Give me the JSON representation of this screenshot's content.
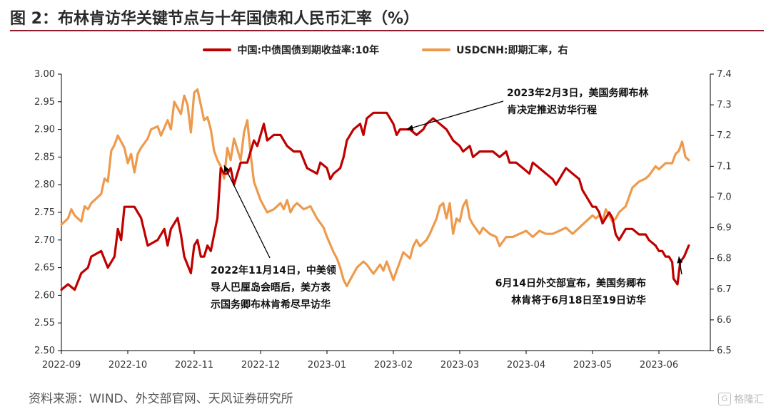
{
  "title": "图 2：布林肯访华关键节点与十年国债和人民币汇率（%）",
  "source": "资料来源：WIND、外交部官网、天风证券研究所",
  "logo_text": "格隆汇",
  "colors": {
    "bond": "#c00000",
    "fx": "#ee9a4d",
    "title_rule": "#8c1c2e"
  },
  "chart_data": {
    "type": "line",
    "x_ticks": [
      "2022-09",
      "2022-10",
      "2022-11",
      "2022-12",
      "2023-01",
      "2023-02",
      "2023-03",
      "2023-04",
      "2023-05",
      "2023-06"
    ],
    "x_range": [
      0,
      9.45
    ],
    "y_left": {
      "ticks": [
        "2.50",
        "2.55",
        "2.60",
        "2.65",
        "2.70",
        "2.75",
        "2.80",
        "2.85",
        "2.90",
        "2.95",
        "3.00"
      ],
      "range": [
        2.5,
        3.0
      ]
    },
    "y_right": {
      "ticks": [
        "6.5",
        "6.6",
        "6.7",
        "6.8",
        "6.9",
        "7.0",
        "7.1",
        "7.2",
        "7.3",
        "7.4"
      ],
      "range": [
        6.5,
        7.4
      ]
    },
    "series": [
      {
        "name": "中国:中债国债到期收益率:10年",
        "axis": "left",
        "points": [
          [
            0.0,
            2.61
          ],
          [
            0.1,
            2.62
          ],
          [
            0.2,
            2.61
          ],
          [
            0.3,
            2.64
          ],
          [
            0.4,
            2.65
          ],
          [
            0.45,
            2.67
          ],
          [
            0.6,
            2.68
          ],
          [
            0.7,
            2.65
          ],
          [
            0.8,
            2.67
          ],
          [
            0.85,
            2.72
          ],
          [
            0.9,
            2.7
          ],
          [
            0.95,
            2.76
          ],
          [
            1.0,
            2.76
          ],
          [
            1.1,
            2.76
          ],
          [
            1.15,
            2.75
          ],
          [
            1.2,
            2.74
          ],
          [
            1.3,
            2.69
          ],
          [
            1.45,
            2.7
          ],
          [
            1.55,
            2.72
          ],
          [
            1.6,
            2.69
          ],
          [
            1.65,
            2.72
          ],
          [
            1.75,
            2.74
          ],
          [
            1.8,
            2.71
          ],
          [
            1.85,
            2.67
          ],
          [
            1.95,
            2.64
          ],
          [
            2.0,
            2.69
          ],
          [
            2.05,
            2.7
          ],
          [
            2.1,
            2.67
          ],
          [
            2.15,
            2.67
          ],
          [
            2.2,
            2.69
          ],
          [
            2.25,
            2.68
          ],
          [
            2.3,
            2.71
          ],
          [
            2.35,
            2.74
          ],
          [
            2.4,
            2.83
          ],
          [
            2.45,
            2.82
          ],
          [
            2.5,
            2.82
          ],
          [
            2.55,
            2.83
          ],
          [
            2.6,
            2.8
          ],
          [
            2.7,
            2.84
          ],
          [
            2.8,
            2.84
          ],
          [
            2.9,
            2.88
          ],
          [
            2.95,
            2.87
          ],
          [
            3.05,
            2.91
          ],
          [
            3.1,
            2.88
          ],
          [
            3.2,
            2.89
          ],
          [
            3.3,
            2.89
          ],
          [
            3.4,
            2.87
          ],
          [
            3.5,
            2.86
          ],
          [
            3.6,
            2.86
          ],
          [
            3.7,
            2.83
          ],
          [
            3.85,
            2.82
          ],
          [
            3.9,
            2.84
          ],
          [
            4.0,
            2.83
          ],
          [
            4.05,
            2.81
          ],
          [
            4.1,
            2.82
          ],
          [
            4.2,
            2.83
          ],
          [
            4.25,
            2.85
          ],
          [
            4.3,
            2.88
          ],
          [
            4.4,
            2.9
          ],
          [
            4.5,
            2.91
          ],
          [
            4.55,
            2.89
          ],
          [
            4.6,
            2.92
          ],
          [
            4.7,
            2.93
          ],
          [
            4.8,
            2.93
          ],
          [
            4.9,
            2.93
          ],
          [
            5.0,
            2.91
          ],
          [
            5.05,
            2.89
          ],
          [
            5.1,
            2.9
          ],
          [
            5.15,
            2.9
          ],
          [
            5.25,
            2.9
          ],
          [
            5.35,
            2.89
          ],
          [
            5.45,
            2.9
          ],
          [
            5.5,
            2.91
          ],
          [
            5.6,
            2.92
          ],
          [
            5.7,
            2.91
          ],
          [
            5.8,
            2.9
          ],
          [
            5.9,
            2.88
          ],
          [
            6.0,
            2.87
          ],
          [
            6.05,
            2.86
          ],
          [
            6.15,
            2.87
          ],
          [
            6.2,
            2.85
          ],
          [
            6.3,
            2.86
          ],
          [
            6.4,
            2.86
          ],
          [
            6.5,
            2.86
          ],
          [
            6.6,
            2.85
          ],
          [
            6.7,
            2.86
          ],
          [
            6.75,
            2.84
          ],
          [
            6.85,
            2.84
          ],
          [
            6.95,
            2.83
          ],
          [
            7.05,
            2.82
          ],
          [
            7.1,
            2.84
          ],
          [
            7.2,
            2.83
          ],
          [
            7.3,
            2.82
          ],
          [
            7.4,
            2.81
          ],
          [
            7.45,
            2.8
          ],
          [
            7.55,
            2.82
          ],
          [
            7.6,
            2.83
          ],
          [
            7.7,
            2.82
          ],
          [
            7.8,
            2.81
          ],
          [
            7.85,
            2.79
          ],
          [
            7.9,
            2.78
          ],
          [
            8.0,
            2.76
          ],
          [
            8.05,
            2.76
          ],
          [
            8.1,
            2.75
          ],
          [
            8.15,
            2.73
          ],
          [
            8.2,
            2.74
          ],
          [
            8.25,
            2.75
          ],
          [
            8.3,
            2.74
          ],
          [
            8.35,
            2.71
          ],
          [
            8.4,
            2.7
          ],
          [
            8.5,
            2.72
          ],
          [
            8.6,
            2.72
          ],
          [
            8.7,
            2.71
          ],
          [
            8.8,
            2.71
          ],
          [
            8.85,
            2.7
          ],
          [
            8.95,
            2.69
          ],
          [
            9.0,
            2.68
          ],
          [
            9.05,
            2.68
          ],
          [
            9.1,
            2.67
          ],
          [
            9.15,
            2.67
          ],
          [
            9.2,
            2.66
          ],
          [
            9.22,
            2.63
          ],
          [
            9.28,
            2.62
          ],
          [
            9.32,
            2.66
          ],
          [
            9.38,
            2.67
          ],
          [
            9.45,
            2.69
          ]
        ]
      },
      {
        "name": "USDCNH:即期汇率，右",
        "axis": "right",
        "points": [
          [
            0.0,
            6.91
          ],
          [
            0.1,
            6.93
          ],
          [
            0.15,
            6.96
          ],
          [
            0.2,
            6.94
          ],
          [
            0.3,
            6.92
          ],
          [
            0.35,
            6.97
          ],
          [
            0.4,
            6.96
          ],
          [
            0.45,
            6.98
          ],
          [
            0.55,
            7.0
          ],
          [
            0.6,
            7.01
          ],
          [
            0.65,
            7.06
          ],
          [
            0.7,
            7.05
          ],
          [
            0.75,
            7.15
          ],
          [
            0.8,
            7.17
          ],
          [
            0.85,
            7.2
          ],
          [
            0.9,
            7.18
          ],
          [
            0.95,
            7.16
          ],
          [
            1.0,
            7.11
          ],
          [
            1.05,
            7.14
          ],
          [
            1.1,
            7.08
          ],
          [
            1.15,
            7.14
          ],
          [
            1.2,
            7.16
          ],
          [
            1.3,
            7.19
          ],
          [
            1.35,
            7.22
          ],
          [
            1.45,
            7.23
          ],
          [
            1.5,
            7.2
          ],
          [
            1.6,
            7.25
          ],
          [
            1.65,
            7.22
          ],
          [
            1.7,
            7.31
          ],
          [
            1.8,
            7.27
          ],
          [
            1.85,
            7.33
          ],
          [
            1.9,
            7.3
          ],
          [
            1.95,
            7.21
          ],
          [
            2.0,
            7.34
          ],
          [
            2.05,
            7.35
          ],
          [
            2.1,
            7.3
          ],
          [
            2.15,
            7.25
          ],
          [
            2.2,
            7.26
          ],
          [
            2.25,
            7.22
          ],
          [
            2.3,
            7.15
          ],
          [
            2.35,
            7.12
          ],
          [
            2.4,
            7.1
          ],
          [
            2.45,
            7.06
          ],
          [
            2.5,
            7.16
          ],
          [
            2.55,
            7.12
          ],
          [
            2.6,
            7.19
          ],
          [
            2.7,
            7.12
          ],
          [
            2.75,
            7.21
          ],
          [
            2.8,
            7.25
          ],
          [
            2.85,
            7.14
          ],
          [
            2.9,
            7.05
          ],
          [
            3.0,
            6.99
          ],
          [
            3.05,
            6.97
          ],
          [
            3.1,
            6.95
          ],
          [
            3.2,
            6.96
          ],
          [
            3.3,
            6.98
          ],
          [
            3.35,
            6.96
          ],
          [
            3.4,
            6.99
          ],
          [
            3.45,
            6.95
          ],
          [
            3.5,
            6.97
          ],
          [
            3.55,
            6.98
          ],
          [
            3.65,
            6.96
          ],
          [
            3.75,
            6.97
          ],
          [
            3.85,
            6.93
          ],
          [
            3.95,
            6.9
          ],
          [
            4.0,
            6.87
          ],
          [
            4.1,
            6.82
          ],
          [
            4.15,
            6.8
          ],
          [
            4.2,
            6.77
          ],
          [
            4.25,
            6.73
          ],
          [
            4.3,
            6.71
          ],
          [
            4.35,
            6.73
          ],
          [
            4.45,
            6.77
          ],
          [
            4.55,
            6.79
          ],
          [
            4.6,
            6.78
          ],
          [
            4.7,
            6.75
          ],
          [
            4.8,
            6.78
          ],
          [
            4.85,
            6.76
          ],
          [
            4.9,
            6.79
          ],
          [
            5.0,
            6.73
          ],
          [
            5.05,
            6.76
          ],
          [
            5.1,
            6.79
          ],
          [
            5.15,
            6.82
          ],
          [
            5.25,
            6.8
          ],
          [
            5.3,
            6.84
          ],
          [
            5.35,
            6.86
          ],
          [
            5.4,
            6.84
          ],
          [
            5.5,
            6.86
          ],
          [
            5.55,
            6.88
          ],
          [
            5.65,
            6.93
          ],
          [
            5.7,
            6.97
          ],
          [
            5.75,
            6.98
          ],
          [
            5.8,
            6.93
          ],
          [
            5.85,
            6.98
          ],
          [
            5.9,
            6.88
          ],
          [
            5.95,
            6.93
          ],
          [
            6.0,
            6.92
          ],
          [
            6.05,
            6.97
          ],
          [
            6.1,
            6.99
          ],
          [
            6.15,
            6.93
          ],
          [
            6.2,
            6.91
          ],
          [
            6.3,
            6.88
          ],
          [
            6.35,
            6.9
          ],
          [
            6.45,
            6.88
          ],
          [
            6.55,
            6.87
          ],
          [
            6.6,
            6.84
          ],
          [
            6.7,
            6.87
          ],
          [
            6.8,
            6.87
          ],
          [
            6.9,
            6.88
          ],
          [
            7.0,
            6.89
          ],
          [
            7.1,
            6.87
          ],
          [
            7.2,
            6.89
          ],
          [
            7.3,
            6.88
          ],
          [
            7.4,
            6.88
          ],
          [
            7.5,
            6.89
          ],
          [
            7.6,
            6.9
          ],
          [
            7.7,
            6.88
          ],
          [
            7.8,
            6.9
          ],
          [
            7.9,
            6.92
          ],
          [
            8.0,
            6.94
          ],
          [
            8.05,
            6.93
          ],
          [
            8.1,
            6.94
          ],
          [
            8.15,
            6.92
          ],
          [
            8.2,
            6.96
          ],
          [
            8.25,
            6.94
          ],
          [
            8.3,
            6.92
          ],
          [
            8.35,
            6.93
          ],
          [
            8.4,
            6.95
          ],
          [
            8.5,
            6.97
          ],
          [
            8.55,
            7.0
          ],
          [
            8.6,
            7.03
          ],
          [
            8.7,
            7.05
          ],
          [
            8.8,
            7.06
          ],
          [
            8.85,
            7.07
          ],
          [
            8.95,
            7.1
          ],
          [
            9.0,
            7.09
          ],
          [
            9.05,
            7.1
          ],
          [
            9.1,
            7.11
          ],
          [
            9.2,
            7.11
          ],
          [
            9.25,
            7.14
          ],
          [
            9.3,
            7.15
          ],
          [
            9.35,
            7.18
          ],
          [
            9.4,
            7.13
          ],
          [
            9.45,
            7.12
          ]
        ]
      }
    ],
    "annotations": [
      {
        "lines": [
          "2023年2月3日，美国务卿布林",
          "肯决定推迟访华行程"
        ],
        "target": [
          5.2,
          2.9
        ]
      },
      {
        "lines": [
          "2022年11月14日，中美领",
          "导人巴厘岛会晤后，美方表",
          "示国务卿布林肯希尽早访华"
        ],
        "target": [
          2.45,
          2.835
        ]
      },
      {
        "lines": [
          "6月14日外交部宣布，美国务卿布",
          "林肯将于6月18日至19日访华"
        ],
        "target": [
          9.3,
          2.67
        ]
      }
    ]
  }
}
